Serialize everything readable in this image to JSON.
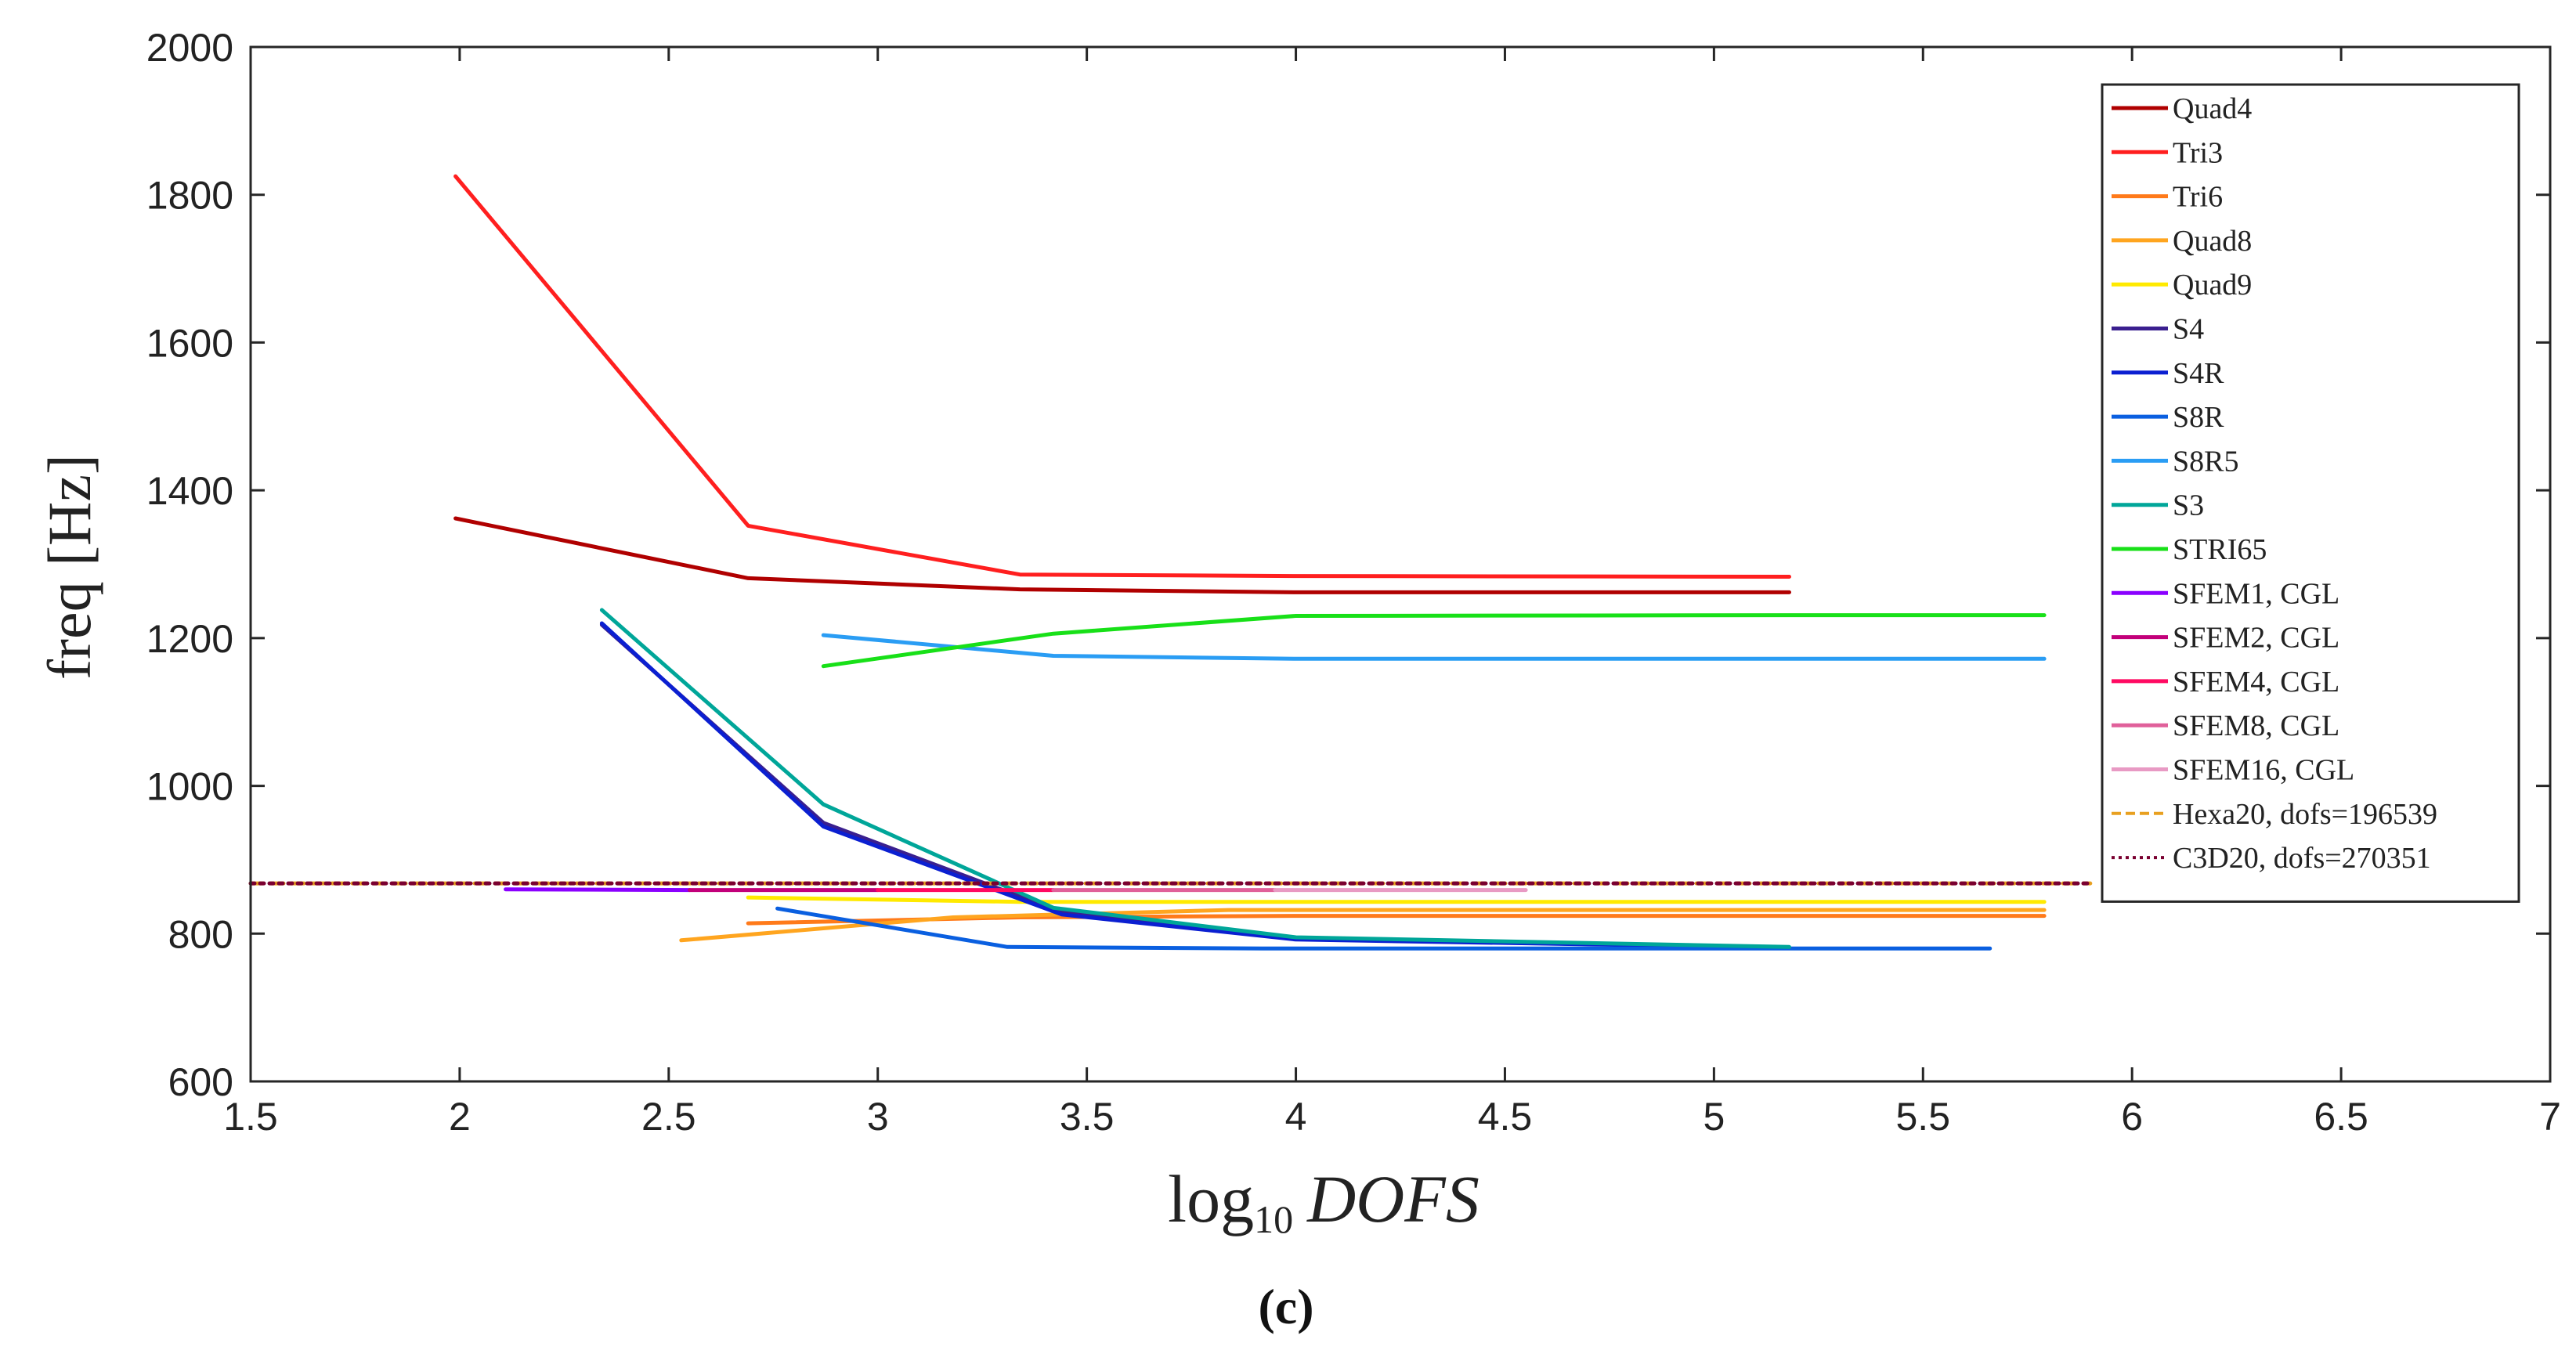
{
  "chart_data": {
    "type": "line",
    "title": "",
    "xlabel": "log10 DOFS",
    "xlabel_parts": {
      "log": "log",
      "sub": "10",
      "var": "DOFS"
    },
    "ylabel": "freq [Hz]",
    "xlim": [
      1.5,
      7
    ],
    "ylim": [
      600,
      2000
    ],
    "xticks": [
      1.5,
      2,
      2.5,
      3,
      3.5,
      4,
      4.5,
      5,
      5.5,
      6,
      6.5,
      7
    ],
    "yticks": [
      600,
      800,
      1000,
      1200,
      1400,
      1600,
      1800,
      2000
    ],
    "legend_position": "top-right",
    "caption": "(c)",
    "series": [
      {
        "name": "Quad4",
        "color": "#b00000",
        "dash": "solid",
        "x": [
          1.99,
          2.69,
          3.34,
          4.0,
          5.18
        ],
        "y": [
          1362,
          1281,
          1266,
          1262,
          1262
        ]
      },
      {
        "name": "Tri3",
        "color": "#ff1f1f",
        "dash": "solid",
        "x": [
          1.99,
          2.69,
          3.34,
          4.0,
          5.18
        ],
        "y": [
          1825,
          1352,
          1286,
          1284,
          1283
        ]
      },
      {
        "name": "Tri6",
        "color": "#ff7a1a",
        "dash": "solid",
        "x": [
          2.69,
          3.34,
          4.0,
          5.18,
          5.79
        ],
        "y": [
          814,
          822,
          824,
          824,
          824
        ]
      },
      {
        "name": "Quad8",
        "color": "#ffa51f",
        "dash": "solid",
        "x": [
          2.53,
          3.18,
          3.84,
          5.18,
          5.79
        ],
        "y": [
          791,
          822,
          832,
          832,
          832
        ]
      },
      {
        "name": "Quad9",
        "color": "#ffea00",
        "dash": "solid",
        "x": [
          2.69,
          3.34,
          4.0,
          5.18,
          5.79
        ],
        "y": [
          849,
          843,
          843,
          843,
          843
        ]
      },
      {
        "name": "S4",
        "color": "#3a1f8f",
        "dash": "solid",
        "x": [
          2.34,
          2.87,
          3.44,
          4.0,
          5.18
        ],
        "y": [
          1218,
          950,
          829,
          793,
          781
        ]
      },
      {
        "name": "S4R",
        "color": "#0b1fd1",
        "dash": "solid",
        "x": [
          2.34,
          2.87,
          3.44,
          4.0,
          5.18
        ],
        "y": [
          1220,
          945,
          826,
          792,
          781
        ]
      },
      {
        "name": "S8R",
        "color": "#0a5fe0",
        "dash": "solid",
        "x": [
          2.76,
          3.31,
          3.92,
          5.18,
          5.66
        ],
        "y": [
          834,
          782,
          780,
          780,
          780
        ]
      },
      {
        "name": "S8R5",
        "color": "#2a9df4",
        "dash": "solid",
        "x": [
          2.87,
          3.42,
          4.0,
          5.18,
          5.79
        ],
        "y": [
          1204,
          1176,
          1172,
          1172,
          1172
        ]
      },
      {
        "name": "S3",
        "color": "#00a699",
        "dash": "solid",
        "x": [
          2.34,
          2.87,
          3.42,
          4.0,
          5.18
        ],
        "y": [
          1238,
          975,
          835,
          795,
          782
        ]
      },
      {
        "name": "STRI65",
        "color": "#18e018",
        "dash": "solid",
        "x": [
          2.87,
          3.42,
          4.0,
          5.18,
          5.79
        ],
        "y": [
          1162,
          1206,
          1230,
          1231,
          1231
        ]
      },
      {
        "name": "SFEM1, CGL",
        "color": "#8a00ff",
        "dash": "solid",
        "x": [
          2.11,
          2.55
        ],
        "y": [
          860,
          859
        ]
      },
      {
        "name": "SFEM2, CGL",
        "color": "#c2007a",
        "dash": "solid",
        "x": [
          2.55,
          3.0
        ],
        "y": [
          859,
          859
        ]
      },
      {
        "name": "SFEM4, CGL",
        "color": "#ff0a62",
        "dash": "solid",
        "x": [
          3.0,
          3.42
        ],
        "y": [
          859,
          859
        ]
      },
      {
        "name": "SFEM8, CGL",
        "color": "#e0609a",
        "dash": "solid",
        "x": [
          3.42,
          3.95
        ],
        "y": [
          859,
          859
        ]
      },
      {
        "name": "SFEM16, CGL",
        "color": "#e89ac4",
        "dash": "solid",
        "x": [
          3.95,
          4.55
        ],
        "y": [
          859,
          859
        ]
      },
      {
        "name": "Hexa20, dofs=196539",
        "color": "#e8a020",
        "dash": "dashed",
        "x": [
          1.5,
          5.9
        ],
        "y": [
          868,
          868
        ]
      },
      {
        "name": "C3D20, dofs=270351",
        "color": "#7a0030",
        "dash": "dotted",
        "x": [
          1.5,
          5.9
        ],
        "y": [
          868,
          868
        ]
      }
    ]
  }
}
